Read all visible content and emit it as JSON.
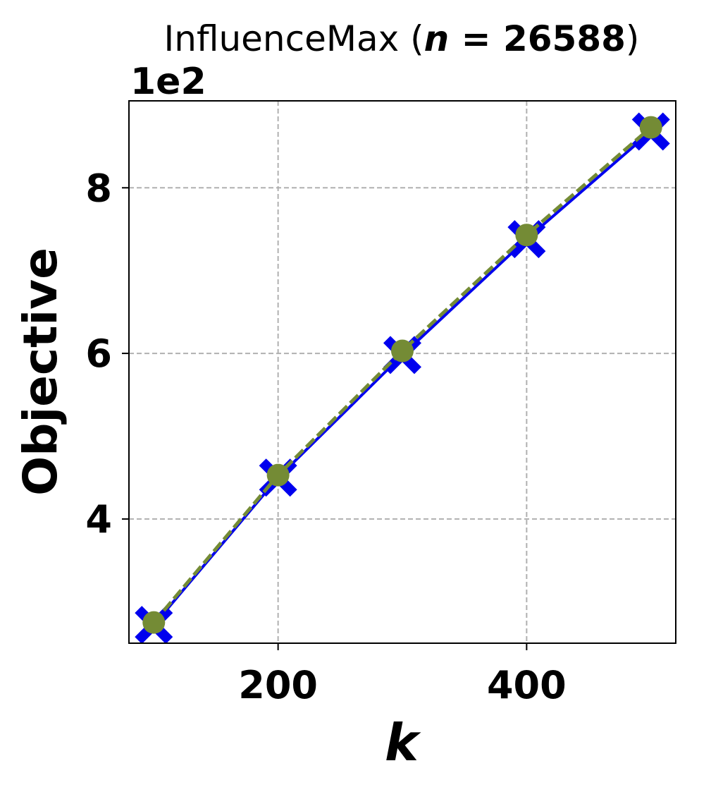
{
  "chart_data": {
    "type": "line",
    "title": "InfluenceMax (",
    "title_math": "n = 26588",
    "title_close": ")",
    "title_var": "n",
    "title_eq": " = ",
    "title_value": "26588",
    "xlabel": "k",
    "ylabel": "Objective",
    "y_offset_label": "1e2",
    "x": [
      100,
      200,
      300,
      400,
      500
    ],
    "xlim": [
      80,
      520
    ],
    "ylim": [
      2.5,
      9.05
    ],
    "xticks": [
      200,
      400
    ],
    "xtick_labels": [
      "200",
      "400"
    ],
    "yticks": [
      4,
      6,
      8
    ],
    "ytick_labels": [
      "4",
      "6",
      "8"
    ],
    "grid": true,
    "series": [
      {
        "values": [
          2.72,
          4.5,
          5.98,
          7.38,
          8.68
        ],
        "color": "#0000ee",
        "marker": "X",
        "linestyle": "solid"
      },
      {
        "values": [
          2.75,
          4.53,
          6.03,
          7.43,
          8.73
        ],
        "color": "#748b35",
        "marker": "o",
        "linestyle": "dashed"
      }
    ]
  }
}
